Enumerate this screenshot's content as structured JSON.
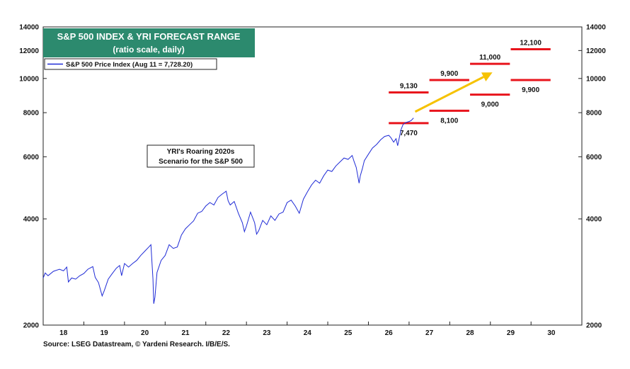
{
  "chart_data": {
    "type": "line",
    "title": "S&P 500 INDEX & YRI FORECAST RANGE",
    "subtitle": "(ratio scale, daily)",
    "yscale": "log",
    "ylim": [
      2000,
      14000
    ],
    "xlim": [
      2017.5,
      2030.75
    ],
    "y_ticks": [
      2000,
      4000,
      6000,
      8000,
      10000,
      12000,
      14000
    ],
    "y_tick_labels": [
      "2000",
      "4000",
      "6000",
      "8000",
      "10000",
      "12000",
      "14000"
    ],
    "x_ticks": [
      {
        "label": "18",
        "x": 2018
      },
      {
        "label": "19",
        "x": 2019
      },
      {
        "label": "20",
        "x": 2020
      },
      {
        "label": "21",
        "x": 2021
      },
      {
        "label": "22",
        "x": 2022
      },
      {
        "label": "23",
        "x": 2023
      },
      {
        "label": "24",
        "x": 2024
      },
      {
        "label": "25",
        "x": 2025
      },
      {
        "label": "26",
        "x": 2026
      },
      {
        "label": "27",
        "x": 2027
      },
      {
        "label": "28",
        "x": 2028
      },
      {
        "label": "29",
        "x": 2029
      },
      {
        "label": "30",
        "x": 2030
      }
    ],
    "grid": false,
    "legend_position": "top-left",
    "series": [
      {
        "name": "S&P 500 Price Index (Aug 11 = 7,728.20)",
        "color": "#1f2bd6",
        "points": [
          [
            2017.5,
            2720
          ],
          [
            2017.55,
            2810
          ],
          [
            2017.62,
            2760
          ],
          [
            2017.75,
            2840
          ],
          [
            2017.9,
            2880
          ],
          [
            2018.0,
            2850
          ],
          [
            2018.08,
            2920
          ],
          [
            2018.12,
            2650
          ],
          [
            2018.2,
            2720
          ],
          [
            2018.3,
            2700
          ],
          [
            2018.4,
            2760
          ],
          [
            2018.5,
            2800
          ],
          [
            2018.6,
            2880
          ],
          [
            2018.72,
            2930
          ],
          [
            2018.78,
            2730
          ],
          [
            2018.86,
            2640
          ],
          [
            2018.95,
            2420
          ],
          [
            2019.0,
            2500
          ],
          [
            2019.1,
            2700
          ],
          [
            2019.2,
            2800
          ],
          [
            2019.3,
            2900
          ],
          [
            2019.38,
            2950
          ],
          [
            2019.43,
            2760
          ],
          [
            2019.5,
            2990
          ],
          [
            2019.6,
            2920
          ],
          [
            2019.7,
            2990
          ],
          [
            2019.8,
            3050
          ],
          [
            2019.9,
            3150
          ],
          [
            2020.0,
            3240
          ],
          [
            2020.1,
            3330
          ],
          [
            2020.15,
            3380
          ],
          [
            2020.2,
            2700
          ],
          [
            2020.22,
            2300
          ],
          [
            2020.25,
            2400
          ],
          [
            2020.3,
            2820
          ],
          [
            2020.4,
            3050
          ],
          [
            2020.5,
            3150
          ],
          [
            2020.6,
            3380
          ],
          [
            2020.7,
            3300
          ],
          [
            2020.8,
            3330
          ],
          [
            2020.9,
            3600
          ],
          [
            2021.0,
            3750
          ],
          [
            2021.1,
            3850
          ],
          [
            2021.2,
            3950
          ],
          [
            2021.3,
            4150
          ],
          [
            2021.4,
            4200
          ],
          [
            2021.5,
            4350
          ],
          [
            2021.6,
            4450
          ],
          [
            2021.7,
            4380
          ],
          [
            2021.8,
            4600
          ],
          [
            2021.9,
            4700
          ],
          [
            2022.0,
            4790
          ],
          [
            2022.05,
            4500
          ],
          [
            2022.1,
            4380
          ],
          [
            2022.2,
            4480
          ],
          [
            2022.3,
            4150
          ],
          [
            2022.4,
            3900
          ],
          [
            2022.45,
            3680
          ],
          [
            2022.5,
            3820
          ],
          [
            2022.6,
            4180
          ],
          [
            2022.7,
            3900
          ],
          [
            2022.75,
            3620
          ],
          [
            2022.8,
            3700
          ],
          [
            2022.9,
            3960
          ],
          [
            2023.0,
            3850
          ],
          [
            2023.1,
            4080
          ],
          [
            2023.2,
            3960
          ],
          [
            2023.3,
            4130
          ],
          [
            2023.4,
            4180
          ],
          [
            2023.5,
            4450
          ],
          [
            2023.6,
            4520
          ],
          [
            2023.7,
            4350
          ],
          [
            2023.8,
            4150
          ],
          [
            2023.9,
            4550
          ],
          [
            2024.0,
            4770
          ],
          [
            2024.1,
            4990
          ],
          [
            2024.2,
            5150
          ],
          [
            2024.3,
            5050
          ],
          [
            2024.4,
            5300
          ],
          [
            2024.5,
            5500
          ],
          [
            2024.6,
            5450
          ],
          [
            2024.7,
            5650
          ],
          [
            2024.8,
            5800
          ],
          [
            2024.9,
            5950
          ],
          [
            2025.0,
            5900
          ],
          [
            2025.1,
            6050
          ],
          [
            2025.15,
            5800
          ],
          [
            2025.2,
            5600
          ],
          [
            2025.27,
            5050
          ],
          [
            2025.3,
            5300
          ],
          [
            2025.35,
            5550
          ],
          [
            2025.4,
            5850
          ],
          [
            2025.5,
            6100
          ],
          [
            2025.6,
            6350
          ],
          [
            2025.7,
            6500
          ],
          [
            2025.8,
            6700
          ],
          [
            2025.9,
            6850
          ],
          [
            2026.0,
            6900
          ],
          [
            2026.05,
            6800
          ],
          [
            2026.12,
            6600
          ],
          [
            2026.18,
            6750
          ],
          [
            2026.22,
            6450
          ],
          [
            2026.25,
            6700
          ],
          [
            2026.3,
            7150
          ],
          [
            2026.35,
            7400
          ],
          [
            2026.42,
            7500
          ],
          [
            2026.5,
            7550
          ],
          [
            2026.55,
            7600
          ],
          [
            2026.61,
            7728
          ]
        ]
      }
    ],
    "forecast_ranges": [
      {
        "x0": 2026.0,
        "x1": 2026.98,
        "high": 9130,
        "low": 7470,
        "high_label": "9,130",
        "low_label": "7,470"
      },
      {
        "x0": 2027.0,
        "x1": 2027.98,
        "high": 9900,
        "low": 8100,
        "high_label": "9,900",
        "low_label": "8,100"
      },
      {
        "x0": 2028.0,
        "x1": 2028.98,
        "high": 11000,
        "low": 9000,
        "high_label": "11,000",
        "low_label": "9,000"
      },
      {
        "x0": 2029.0,
        "x1": 2029.98,
        "high": 12100,
        "low": 9900,
        "high_label": "12,100",
        "low_label": "9,900"
      }
    ],
    "range_color": "#e8141c",
    "arrow": {
      "from": [
        2026.65,
        8050
      ],
      "to": [
        2028.55,
        10400
      ],
      "color": "#f6c200"
    },
    "title_box_color": "#2c8a6e",
    "annotation": [
      "YRI's Roaring 2020s",
      "Scenario for the S&P 500"
    ],
    "source": "Source: LSEG Datastream, © Yardeni Research. I/B/E/S."
  }
}
